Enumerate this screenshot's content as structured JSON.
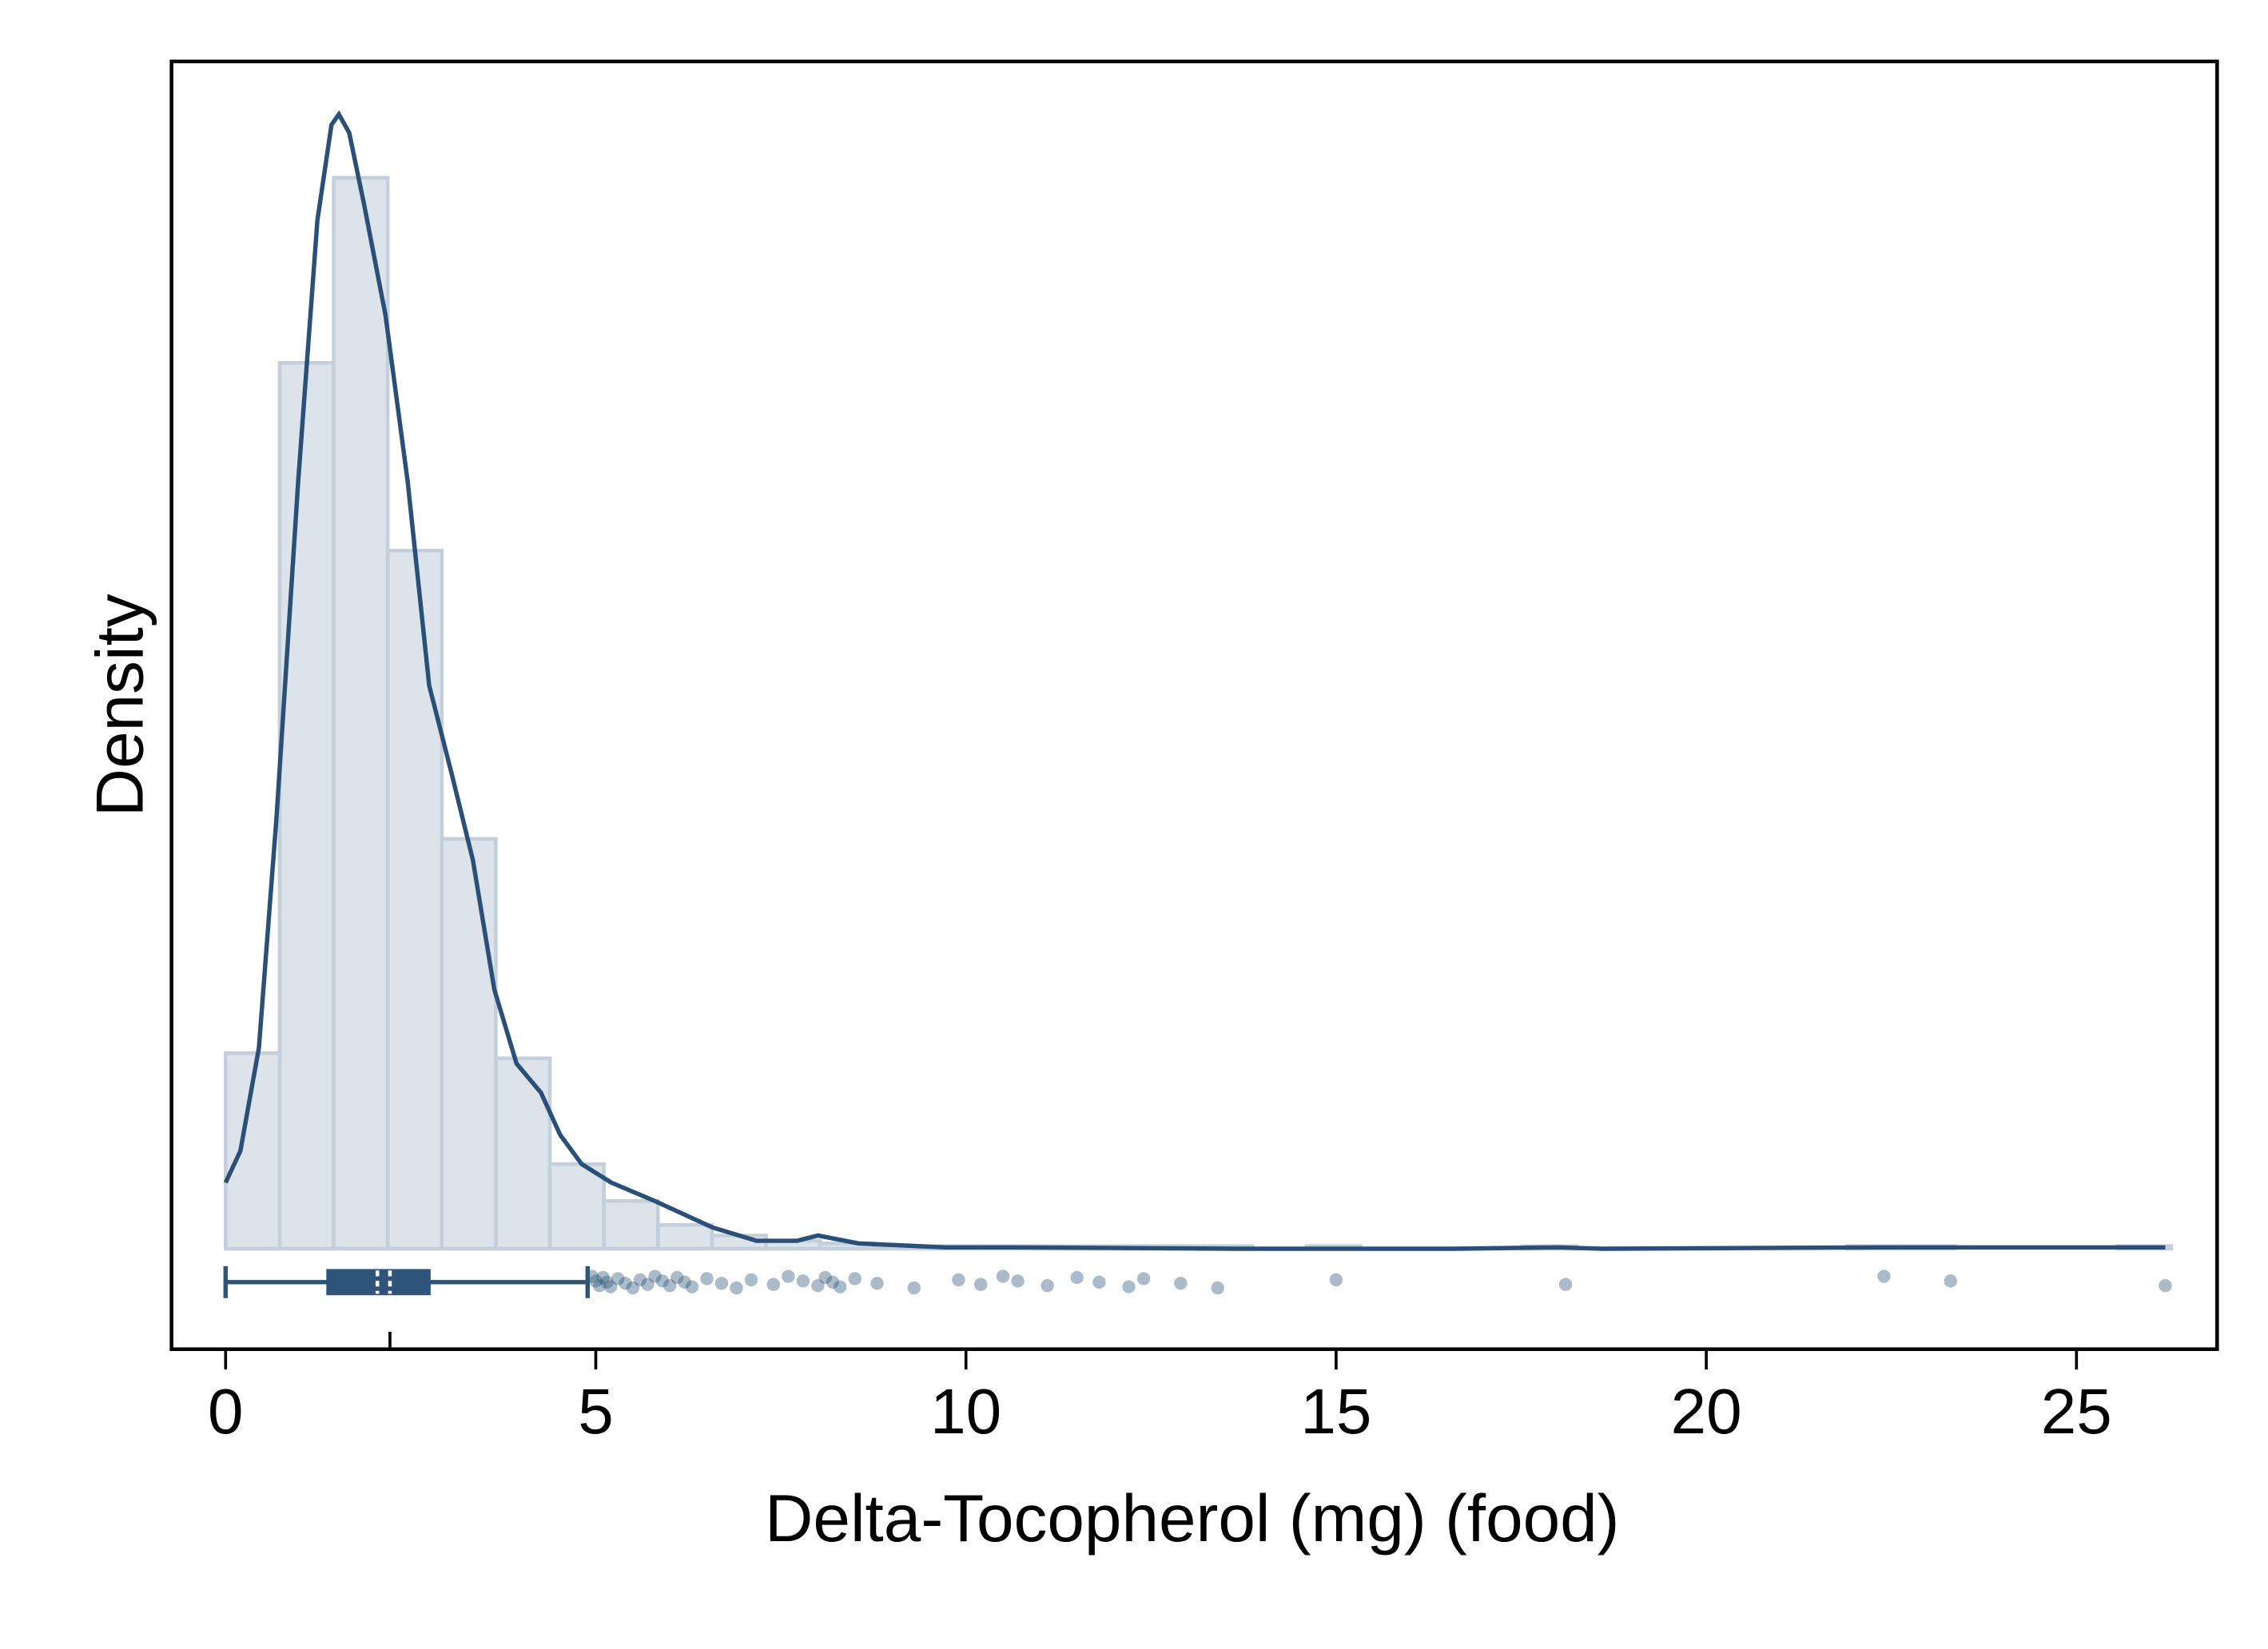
{
  "chart_data": {
    "type": "histogram",
    "x_label": "Delta-Tocopherol (mg) (food)",
    "y_label": "Density",
    "xlim": [
      -0.73,
      26.9
    ],
    "ylim": [
      -0.038,
      0.449
    ],
    "xticks": [
      0,
      5,
      10,
      15,
      20,
      25
    ],
    "bins": [
      0,
      0.73,
      1.46,
      2.19,
      2.92,
      3.65,
      4.38,
      5.11,
      5.84,
      6.57,
      7.3,
      8.03,
      8.76,
      9.49,
      10.22,
      10.95,
      11.68,
      12.41,
      13.14,
      13.87,
      14.6,
      15.33,
      16.06,
      16.79,
      17.52,
      18.25,
      18.98,
      19.71,
      20.44,
      21.17,
      21.9,
      22.63,
      23.36,
      24.09,
      24.82,
      25.55,
      26.28
    ],
    "values": [
      0.074,
      0.335,
      0.405,
      0.264,
      0.155,
      0.072,
      0.032,
      0.018,
      0.009,
      0.005,
      0.003,
      0.002,
      0.001,
      0.001,
      0.001,
      0.001,
      0.001,
      0.001,
      0.001,
      0,
      0.001,
      0,
      0,
      0,
      0.001,
      0,
      0,
      0,
      0,
      0,
      0.001,
      0.001,
      0,
      0,
      0,
      0.001
    ],
    "color": "#dce3ea",
    "edge_color": "#c3cfdb",
    "density": {
      "color": "#2a5078",
      "x": [
        0,
        0.2,
        0.45,
        0.69,
        0.98,
        1.24,
        1.43,
        1.53,
        1.67,
        1.87,
        2.16,
        2.46,
        2.75,
        3.05,
        3.34,
        3.63,
        3.93,
        4.26,
        4.52,
        4.81,
        5.21,
        5.8,
        6.58,
        7.17,
        7.72,
        8.0,
        8.55,
        9.72,
        10.7,
        13.65,
        16.6,
        18,
        18.6,
        22.3,
        23.3,
        26.2
      ],
      "y": [
        0.025,
        0.037,
        0.076,
        0.164,
        0.29,
        0.389,
        0.425,
        0.429,
        0.422,
        0.395,
        0.353,
        0.29,
        0.213,
        0.18,
        0.147,
        0.098,
        0.07,
        0.059,
        0.043,
        0.032,
        0.025,
        0.018,
        0.008,
        0.003,
        0.003,
        0.005,
        0.002,
        0.0005,
        0.0005,
        0,
        0,
        0.0005,
        0,
        0.0005,
        0.0005,
        0.0005
      ]
    },
    "boxplot": {
      "color": "#2e5579",
      "whisker_low": 0,
      "q1": 1.38,
      "median": 2.05,
      "q3": 2.75,
      "whisker_high": 4.89,
      "mean": 2.22,
      "outliers": [
        4.95,
        5.0,
        5.05,
        5.1,
        5.15,
        5.2,
        5.3,
        5.4,
        5.5,
        5.6,
        5.7,
        5.8,
        5.9,
        6.0,
        6.1,
        6.2,
        6.3,
        6.5,
        6.7,
        6.9,
        7.1,
        7.4,
        7.6,
        7.8,
        8.0,
        8.1,
        8.2,
        8.3,
        8.5,
        8.8,
        9.3,
        9.9,
        10.2,
        10.5,
        10.7,
        11.1,
        11.5,
        11.8,
        12.2,
        12.4,
        12.9,
        13.4,
        15.0,
        18.1,
        22.4,
        23.3,
        26.2
      ]
    }
  }
}
